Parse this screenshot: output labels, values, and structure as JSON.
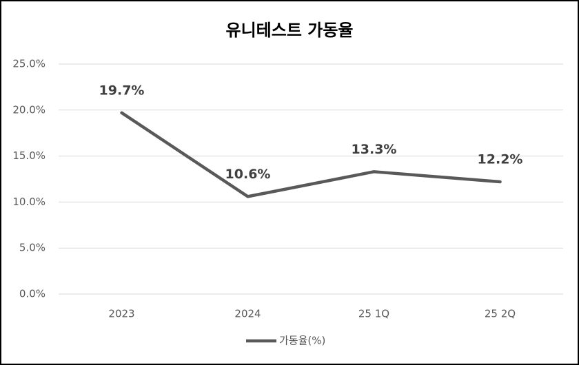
{
  "chart_data": {
    "type": "line",
    "title": "유니테스트 가동율",
    "categories": [
      "2023",
      "2024",
      "25 1Q",
      "25 2Q"
    ],
    "series": [
      {
        "name": "가동율(%)",
        "color": "#595959",
        "values": [
          19.7,
          10.6,
          13.3,
          12.2
        ],
        "value_labels": [
          "19.7%",
          "10.6%",
          "13.3%",
          "12.2%"
        ]
      }
    ],
    "ylim": [
      0,
      25
    ],
    "yticks": [
      {
        "value": 0,
        "label": "0.0%"
      },
      {
        "value": 5,
        "label": "5.0%"
      },
      {
        "value": 10,
        "label": "10.0%"
      },
      {
        "value": 15,
        "label": "15.0%"
      },
      {
        "value": 20,
        "label": "20.0%"
      },
      {
        "value": 25,
        "label": "25.0%"
      }
    ],
    "grid": true,
    "legend": "bottom"
  }
}
